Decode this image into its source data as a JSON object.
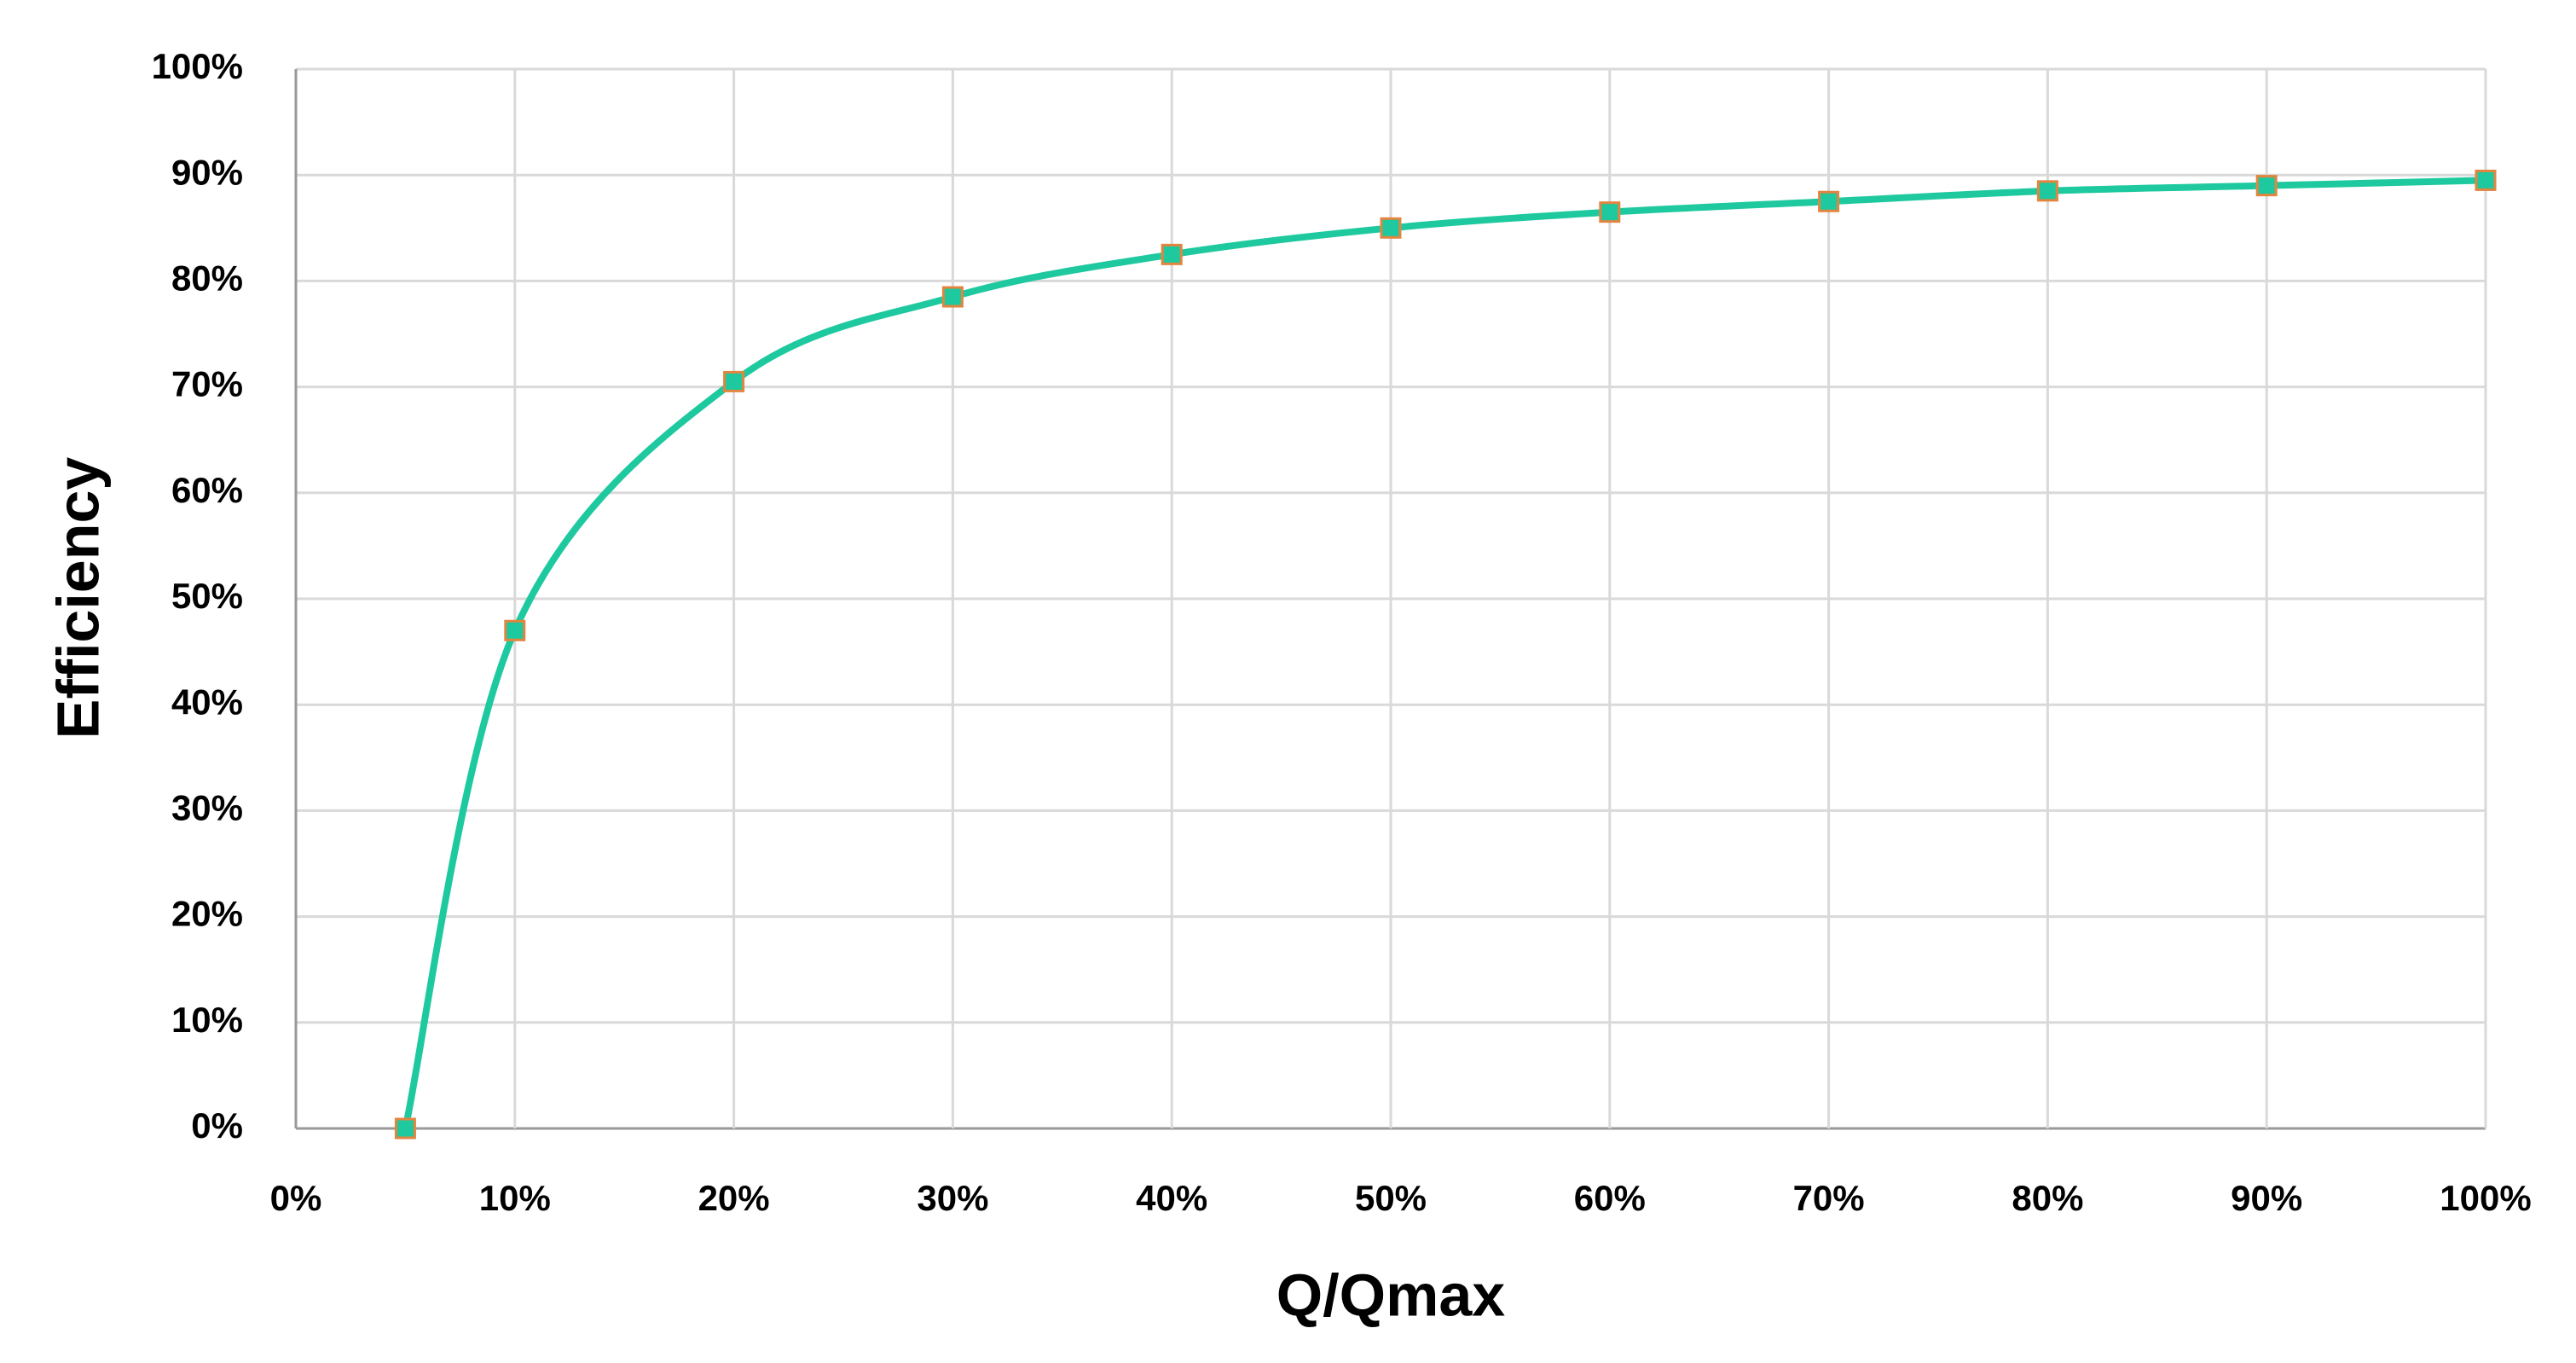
{
  "chart_data": {
    "type": "line",
    "x_label": "Q/Qmax",
    "y_label": "Efficiency",
    "xlim": [
      0,
      100
    ],
    "ylim": [
      0,
      100
    ],
    "xticks": [
      {
        "value": 0,
        "label": "0%"
      },
      {
        "value": 10,
        "label": "10%"
      },
      {
        "value": 20,
        "label": "20%"
      },
      {
        "value": 30,
        "label": "30%"
      },
      {
        "value": 40,
        "label": "40%"
      },
      {
        "value": 50,
        "label": "50%"
      },
      {
        "value": 60,
        "label": "60%"
      },
      {
        "value": 70,
        "label": "70%"
      },
      {
        "value": 80,
        "label": "80%"
      },
      {
        "value": 90,
        "label": "90%"
      },
      {
        "value": 100,
        "label": "100%"
      }
    ],
    "yticks": [
      {
        "value": 0,
        "label": "0%"
      },
      {
        "value": 10,
        "label": "10%"
      },
      {
        "value": 20,
        "label": "20%"
      },
      {
        "value": 30,
        "label": "30%"
      },
      {
        "value": 40,
        "label": "40%"
      },
      {
        "value": 50,
        "label": "50%"
      },
      {
        "value": 60,
        "label": "60%"
      },
      {
        "value": 70,
        "label": "70%"
      },
      {
        "value": 80,
        "label": "80%"
      },
      {
        "value": 90,
        "label": "90%"
      },
      {
        "value": 100,
        "label": "100%"
      }
    ],
    "grid": true,
    "smooth": true,
    "x": [
      5,
      10,
      20,
      30,
      40,
      50,
      60,
      70,
      80,
      90,
      100
    ],
    "series": [
      {
        "color": "#1fc99f",
        "marker_edge_color": "#e2853f",
        "values": [
          0,
          47,
          70.5,
          78.5,
          82.5,
          85,
          86.5,
          87.5,
          88.5,
          89,
          89.5
        ]
      }
    ]
  }
}
